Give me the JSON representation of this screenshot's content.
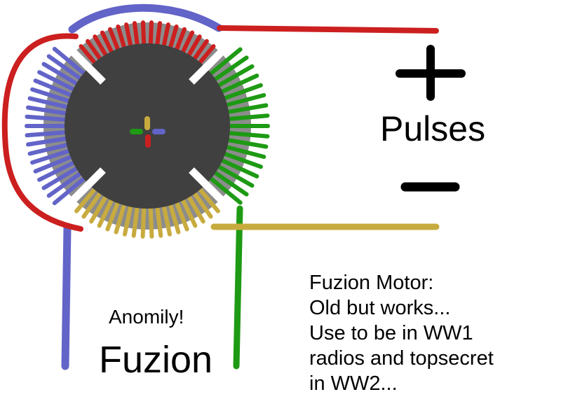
{
  "colors": {
    "red": "#cc1f1f",
    "blue": "#6264c8",
    "green": "#1e9a14",
    "gold": "#c8ab3f",
    "core": "#404040",
    "ring": "#8c8c8c",
    "terminal": "#000000"
  },
  "labels": {
    "plus": "+",
    "minus": "−",
    "pulses": "Pulses",
    "anomaly": "Anomily!",
    "fuzion": "Fuzion"
  },
  "description": {
    "lines": [
      "Fuzion Motor:",
      "Old but works...",
      "Use to be in WW1",
      "radios and topsecret",
      "in WW2..."
    ]
  }
}
